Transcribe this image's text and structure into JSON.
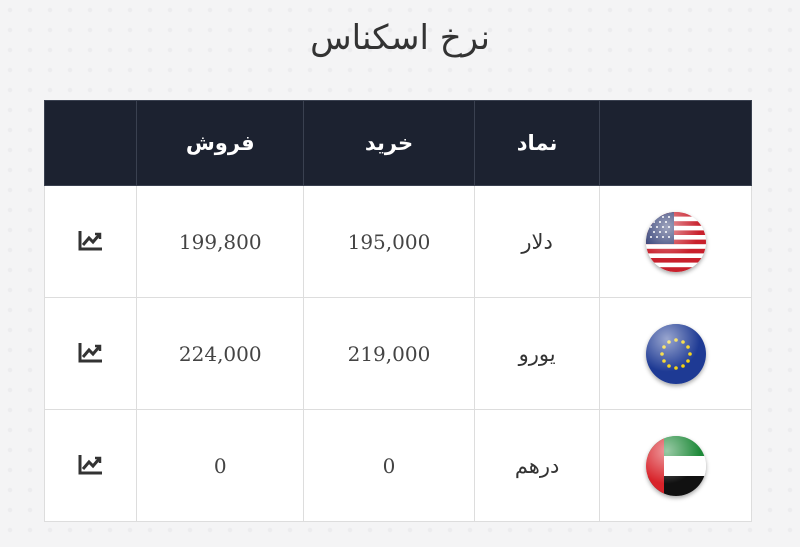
{
  "page": {
    "title": "نرخ اسکناس"
  },
  "table": {
    "headers": {
      "symbol": "نماد",
      "buy": "خرید",
      "sell": "فروش"
    },
    "rows": [
      {
        "currency": "دلار",
        "buy": "195,000",
        "sell": "199,800",
        "flag_icon": "us-flag-icon",
        "chart_icon": "chart-line-icon"
      },
      {
        "currency": "یورو",
        "buy": "219,000",
        "sell": "224,000",
        "flag_icon": "eu-flag-icon",
        "chart_icon": "chart-line-icon"
      },
      {
        "currency": "درهم",
        "buy": "0",
        "sell": "0",
        "flag_icon": "uae-flag-icon",
        "chart_icon": "chart-line-icon"
      }
    ]
  },
  "colors": {
    "header_bg": "#1c2230",
    "header_text": "#ffffff",
    "page_bg": "#f4f4f5"
  }
}
